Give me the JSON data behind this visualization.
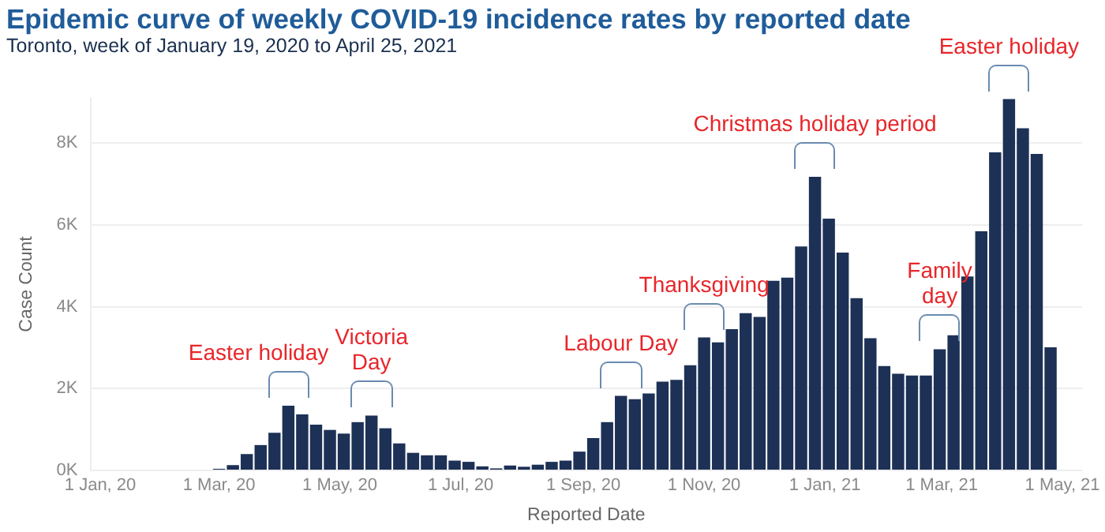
{
  "chart_data": {
    "type": "bar",
    "title": "Epidemic curve of weekly COVID-19 incidence rates by reported date",
    "subtitle": "Toronto, week of January 19, 2020 to April 25, 2021",
    "xlabel": "Reported Date",
    "ylabel": "Case Count",
    "x": [
      "2020-01-19",
      "2020-01-26",
      "2020-02-02",
      "2020-02-09",
      "2020-02-16",
      "2020-02-23",
      "2020-03-01",
      "2020-03-08",
      "2020-03-15",
      "2020-03-22",
      "2020-03-29",
      "2020-04-05",
      "2020-04-12",
      "2020-04-19",
      "2020-04-26",
      "2020-05-03",
      "2020-05-10",
      "2020-05-17",
      "2020-05-24",
      "2020-05-31",
      "2020-06-07",
      "2020-06-14",
      "2020-06-21",
      "2020-06-28",
      "2020-07-05",
      "2020-07-12",
      "2020-07-19",
      "2020-07-26",
      "2020-08-02",
      "2020-08-09",
      "2020-08-16",
      "2020-08-23",
      "2020-08-30",
      "2020-09-06",
      "2020-09-13",
      "2020-09-20",
      "2020-09-27",
      "2020-10-04",
      "2020-10-11",
      "2020-10-18",
      "2020-10-25",
      "2020-11-01",
      "2020-11-08",
      "2020-11-15",
      "2020-11-22",
      "2020-11-29",
      "2020-12-06",
      "2020-12-13",
      "2020-12-20",
      "2020-12-27",
      "2021-01-03",
      "2021-01-10",
      "2021-01-17",
      "2021-01-24",
      "2021-01-31",
      "2021-02-07",
      "2021-02-14",
      "2021-02-21",
      "2021-02-28",
      "2021-03-07",
      "2021-03-14",
      "2021-03-21",
      "2021-03-28",
      "2021-04-04",
      "2021-04-11",
      "2021-04-18",
      "2021-04-25"
    ],
    "values": [
      0,
      0,
      0,
      0,
      0,
      0,
      40,
      130,
      400,
      620,
      920,
      1580,
      1370,
      1120,
      990,
      900,
      1180,
      1340,
      1030,
      660,
      430,
      370,
      370,
      240,
      210,
      100,
      50,
      120,
      90,
      140,
      210,
      240,
      460,
      790,
      1180,
      1820,
      1740,
      1880,
      2170,
      2210,
      2570,
      3250,
      3130,
      3450,
      3840,
      3750,
      4630,
      4710,
      5470,
      7170,
      6150,
      5320,
      4210,
      3230,
      2550,
      2360,
      2320,
      2320,
      2960,
      3300,
      4740,
      5840,
      7770,
      9070,
      8360,
      7730,
      3010
    ],
    "color": "#1d3156",
    "xlim": [
      "2019-12-27",
      "2021-05-11"
    ],
    "xticks": [
      {
        "value": "2020-01-01",
        "label": "1 Jan, 20"
      },
      {
        "value": "2020-03-01",
        "label": "1 Mar, 20"
      },
      {
        "value": "2020-05-01",
        "label": "1 May, 20"
      },
      {
        "value": "2020-07-01",
        "label": "1 Jul, 20"
      },
      {
        "value": "2020-09-01",
        "label": "1 Sep, 20"
      },
      {
        "value": "2020-11-01",
        "label": "1 Nov, 20"
      },
      {
        "value": "2021-01-01",
        "label": "1 Jan, 21"
      },
      {
        "value": "2021-03-01",
        "label": "1 Mar, 21"
      },
      {
        "value": "2021-05-01",
        "label": "1 May, 21"
      }
    ],
    "ylim": [
      0,
      9100
    ],
    "yticks": [
      {
        "value": 0,
        "label": "0K"
      },
      {
        "value": 2000,
        "label": "2K"
      },
      {
        "value": 4000,
        "label": "4K"
      },
      {
        "value": 6000,
        "label": "6K"
      },
      {
        "value": 8000,
        "label": "8K"
      }
    ],
    "grid": "y",
    "annotations": [
      {
        "text": "Easter holiday",
        "x": "2020-04-05",
        "y": 1580
      },
      {
        "text": "Victoria\nDay",
        "x": "2020-05-17",
        "y": 1340
      },
      {
        "text": "Labour Day",
        "x": "2020-09-20",
        "y": 1820
      },
      {
        "text": "Thanksgiving",
        "x": "2020-11-01",
        "y": 3250
      },
      {
        "text": "Christmas holiday period",
        "x": "2020-12-27",
        "y": 7170
      },
      {
        "text": "Family\nday",
        "x": "2021-02-28",
        "y": 2960
      },
      {
        "text": "Easter holiday",
        "x": "2021-04-04",
        "y": 9070
      }
    ]
  }
}
